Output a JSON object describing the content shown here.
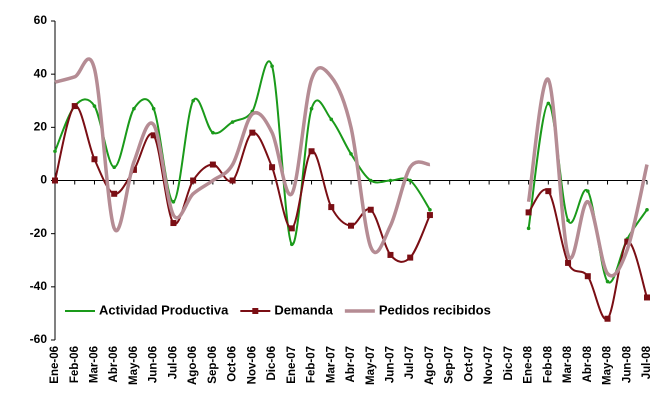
{
  "chart_data": {
    "type": "line",
    "categories": [
      "Ene-06",
      "Feb-06",
      "Mar-06",
      "Abr-06",
      "May-06",
      "Jun-06",
      "Jul-06",
      "Ago-06",
      "Sep-06",
      "Oct-06",
      "Nov-06",
      "Dic-06",
      "Ene-07",
      "Feb-07",
      "Mar-07",
      "Abr-07",
      "May-07",
      "Jun-07",
      "Jul-07",
      "Ago-07",
      "Sep-07",
      "Oct-07",
      "Nov-07",
      "Dic-07",
      "Ene-08",
      "Feb-08",
      "Mar-08",
      "Abr-08",
      "May-08",
      "Jun-08",
      "Jul-08"
    ],
    "series": [
      {
        "name": "Actividad Productiva",
        "color": "#1a9a1a",
        "marker": "dot",
        "values": [
          11,
          28,
          28,
          5,
          27,
          27,
          -8,
          30,
          18,
          22,
          26,
          43,
          -24,
          27,
          23,
          10,
          0,
          0,
          0,
          -11,
          null,
          null,
          null,
          null,
          -18,
          29,
          -15,
          -4,
          -38,
          -22,
          -11
        ]
      },
      {
        "name": "Demanda",
        "color": "#7a0e14",
        "marker": "square",
        "values": [
          0,
          28,
          8,
          -5,
          4,
          17,
          -16,
          0,
          6,
          0,
          18,
          5,
          -18,
          11,
          -10,
          -17,
          -11,
          -28,
          -29,
          -13,
          null,
          null,
          null,
          null,
          -12,
          -4,
          -31,
          -36,
          -52,
          -23,
          -44
        ]
      },
      {
        "name": "Pedidos recibidos",
        "color": "#b58c94",
        "marker": "none",
        "values": [
          37,
          39,
          42,
          -18,
          7,
          21,
          -13,
          -5,
          0,
          6,
          25,
          18,
          -5,
          38,
          39,
          20,
          -25,
          -17,
          5,
          6,
          null,
          null,
          null,
          null,
          -8,
          38,
          -28,
          -8,
          -35,
          -26,
          6
        ]
      }
    ],
    "ylim": [
      -60,
      60
    ],
    "yticks": [
      -60,
      -40,
      -20,
      0,
      20,
      40,
      60
    ],
    "grid": false,
    "legend": "bottom"
  }
}
